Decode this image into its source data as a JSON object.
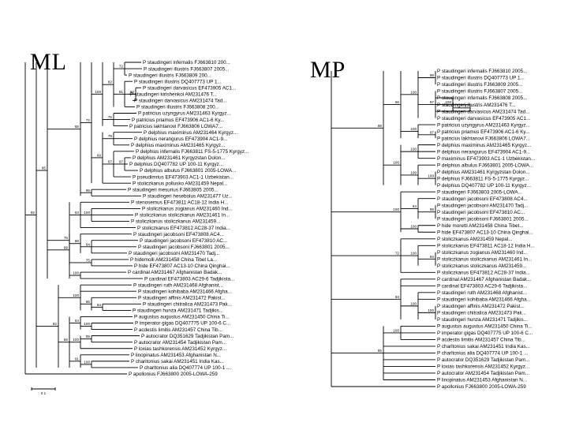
{
  "ml": {
    "label": "ML",
    "scale_label": "0.1",
    "leaves": [
      "P staudingeri infernalis FJ663810 200...",
      "P staudingeri illustris FJ663807 2005...",
      "P staudingeri illustris FJ663809 200...",
      "P staudingeri illustris DQ407773 UP 1...",
      "P staudingeri darvasicus EF473905 AC1...",
      "P staudingeri kirishenkoi AM231476 T...",
      "P staudingeri darvasicus AM231474 Tad...",
      "P staudingeri illustris FJ663808 200...",
      "P patricius uzyngyrus AM231463 Kyrgyz...",
      "P patricius priamus EF473906 AC1-6 Ky...",
      "P patricius lakhtanovi FJ663806 LOWA7...",
      "P delphius maximinus AM231464 Kyrgyz...",
      "P delphius nerangurus EF473904 AC1-9...",
      "P delphius maximinus AM231465 Kyrgyz...",
      "P delphius infernalis FJ663811 FS-5-1775 Kyrgyz...",
      "P delphius AM231461 Kyrgyzstan Dolon...",
      "P delphius DQ407782 UP 100-11 Kyrgyz...",
      "P delphius albulus FJ663801 2005-LOWA...",
      "P pseudimrius EF473903 AC1-1 Uzbekistan...",
      "P stoliczkanus pollusko AM231459 Nepal...",
      "P staudingeri mesurius FJ663805 2005...",
      "P staudingeri hesebolus AM231477 Uz...",
      "P stenosemus EF473811 AC18-12 India H...",
      "P stoliczkanus zogianus AM231460 Ind...",
      "P stoliczkanus stoliczkanus AM231461 In...",
      "P stoliczkanus stoliczkanus AM231459...",
      "P stoliczkanus EF473812 AC28-37 India...",
      "P staudingeri jacobsoni EF473808 AC4...",
      "P staudingeri jacobsoni EF473810 AC...",
      "P staudingeri jacobsoni FJ663801 2005...",
      "P staudingeri jacobsoni AM231470 Tadj...",
      "P hidemolli AM231458 China Tibet La...",
      "P hide EF473807 AC13-10 China Qinghai...",
      "P cardinal AM231467 Afghanistan Badak...",
      "P cardinal EF473803 AC29-6 Tadjikista...",
      "P staudingeri ruth AM231468 Afghanist...",
      "P staudingeri kohibaba AM231466 Afgha...",
      "P staudingeri affinis AM231472 Pakist...",
      "P staudingeri chitralica AM231473 Pak...",
      "P staudingeri hunza AM231471 Tadjikis...",
      "P augustus augustus AM231450 China Ti...",
      "P imperator gigas DQ407775 UP 100-6 C...",
      "P acdestis limitis AM231457 China Tib...",
      "P autocrator DQ351629 Tadjikistan Pam...",
      "P autocrator AM231454 Tadjikistan Pam...",
      "P loxias tashkorensis AM231452 Kyrgyz...",
      "P linopinatus AM231453 Afghanistan N...",
      "P charitonius sakai AM231451 India Kas...",
      "P charltonius alia DQ407774 UP 100-1 ...",
      "P apollonius FJ663800 2005-LOWA-259"
    ],
    "bootstraps": [
      "72",
      "82",
      "81",
      "60",
      "100",
      "75",
      "72",
      "69",
      "79",
      "87",
      "97",
      "88",
      "95",
      "75",
      "63",
      "100",
      "88",
      "64",
      "75",
      "100",
      "99",
      "82",
      "100",
      "86",
      "64",
      "56",
      "64",
      "100",
      "100",
      "89",
      "91",
      "100",
      "85",
      "92",
      "71",
      "65",
      "75",
      "63",
      "84",
      "100"
    ]
  },
  "mp": {
    "label": "MP",
    "leaves": [
      "P staudingeri infernalis FJ663810 2005...",
      "P staudingeri illustris DQ407773 UP 1...",
      "P staudingeri illustris FJ663809 2005...",
      "P staudingeri illustris FJ663807 2005...",
      "P staudingeri infernalis FJ663808 2005...",
      "P staudingeri illustris AM231476 T...",
      "P staudingeri darvasicus AM231474 Tad...",
      "P staudingeri darvasicus EF473905 AC1...",
      "P patricius uzyngyrus AM231463 Kyrgyz...",
      "P patricius priamus EF473906 AC1-6 Ky...",
      "P patricius lakhtanovi FJ663806 LOWA7...",
      "P delphius maximinus AM231465 Kyrgyz...",
      "P delphius nerangurus EF473904 AC1-9...",
      "P maximinus EF473903 AC1-1 Uzbekistan...",
      "P delphius albulus FJ663801 2005-LOWA...",
      "P delphius AM231461 Kyrgyzstan Dolon...",
      "P delphius FJ663811 FS-5-1775 Kyrgyz...",
      "P delphius DQ407782 UP 100-11 Kyrgyz...",
      "P staudingeri FJ663803 2005-LOWA...",
      "P staudingeri jacobsoni EF473808 AC4...",
      "P staudingeri jacobsoni AM231470 Tadj...",
      "P staudingeri jacobsoni EF473810 AC...",
      "P staudingeri jacobsoni FJ663801 2005...",
      "P hide moretti AM231458 China Tibet...",
      "P hide EF473807 AC13-10 China Qinghai...",
      "P stoliczkanus AM231459 Nepal...",
      "P stoliczkanus EF473811 AC18-12 India H...",
      "P stoliczkanus zogianus AM231460 Ind...",
      "P stoliczkanus stoliczkanus AM231461 In...",
      "P stoliczkanus stoliczkanus AM231459...",
      "P stoliczkanus EF473812 AC28-37 India...",
      "P cardinal AM231467 Afghanistan Badak...",
      "P cardinal EF473803 AC29-6 Tadjikista...",
      "P staudingeri ruth AM231468 Afghanist...",
      "P staudingeri kohibaba AM231466 Afgha...",
      "P staudingeri affinis AM231472 Pakist...",
      "P staudingeri chitralica AM231473 Pak...",
      "P staudingeri hunza AM231471 Tadjikis...",
      "P augustus augustus AM231450 China Ti...",
      "P imperator gigas DQ407775 UP 100-6 C...",
      "P acdestis limitis AM231457 China Tib...",
      "P charltonius sakai AM231451 India Kas...",
      "P charltonius alia DQ407774 UP 100-1 ...",
      "P autocrator DQ351629 Tadjikistan Pam...",
      "P loxias tashkorensis AM231452 Kyrgyz...",
      "P autocrator AM231454 Tadjikistan Pam...",
      "P linopinatus AM231453 Afghanistan N...",
      "P apollonius FJ663800 2005-LOWA-259"
    ],
    "bootstraps": [
      "99",
      "100",
      "97",
      "100",
      "97",
      "100",
      "97",
      "66",
      "100",
      "100",
      "100",
      "100",
      "88",
      "100",
      "64",
      "98",
      "100",
      "72",
      "100",
      "94",
      "94",
      "100",
      "100",
      "85",
      "100"
    ]
  }
}
